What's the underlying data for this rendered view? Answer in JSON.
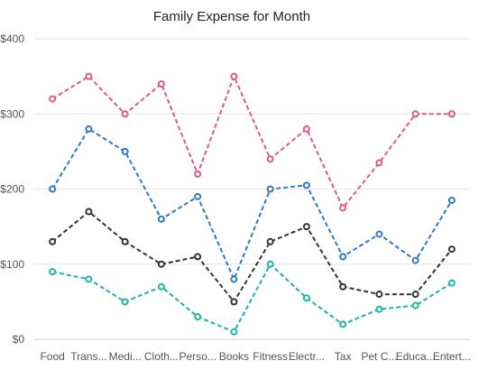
{
  "chart_data": {
    "type": "line",
    "title": "Family Expense for Month",
    "xlabel": "",
    "ylabel": "",
    "categories": [
      "Food",
      "Trans...",
      "Medi...",
      "Cloth...",
      "Perso...",
      "Books",
      "Fitness",
      "Electr...",
      "Tax",
      "Pet C...",
      "Educa...",
      "Entert..."
    ],
    "ylim": [
      0,
      400
    ],
    "yticks": [
      0,
      100,
      200,
      300,
      400
    ],
    "ytick_labels": [
      "$0",
      "$100",
      "$200",
      "$300",
      "$400"
    ],
    "grid": true,
    "legend": "none",
    "series": [
      {
        "color": "#e0588a",
        "values": [
          320,
          350,
          300,
          340,
          220,
          350,
          240,
          280,
          175,
          235,
          300,
          300
        ]
      },
      {
        "color": "#2f78c8",
        "values": [
          200,
          280,
          250,
          160,
          190,
          80,
          200,
          205,
          110,
          140,
          105,
          185
        ]
      },
      {
        "color": "#333333",
        "values": [
          130,
          170,
          130,
          100,
          110,
          50,
          130,
          150,
          70,
          60,
          60,
          120
        ]
      },
      {
        "color": "#1ab5a6",
        "values": [
          90,
          80,
          50,
          70,
          30,
          10,
          100,
          55,
          20,
          40,
          45,
          75
        ]
      }
    ]
  }
}
